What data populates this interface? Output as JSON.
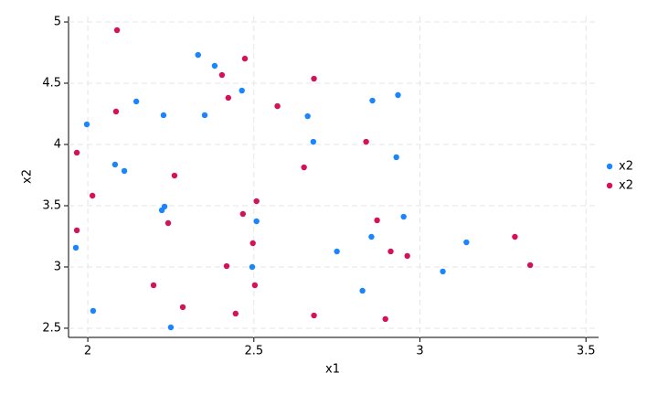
{
  "chart_data": {
    "type": "scatter",
    "xlabel": "x1",
    "ylabel": "x2",
    "xlim": [
      1.942,
      3.538
    ],
    "ylim": [
      2.425,
      5.045
    ],
    "xticks": [
      2,
      2.5,
      3,
      3.5
    ],
    "yticks": [
      2.5,
      3,
      3.5,
      4,
      4.5,
      5
    ],
    "grid": true,
    "legend": "right",
    "series": [
      {
        "name": "x2",
        "color": "#1a85ff",
        "x": [
          2.332,
          2.382,
          2.464,
          2.146,
          2.352,
          2.228,
          1.997,
          2.857,
          2.934,
          2.662,
          2.679,
          2.929,
          2.082,
          2.11,
          2.231,
          2.223,
          2.508,
          2.951,
          2.854,
          2.75,
          3.14,
          1.964,
          2.495,
          3.069,
          2.827,
          2.016,
          2.25
        ],
        "values": [
          4.731,
          4.642,
          4.44,
          4.351,
          4.239,
          4.239,
          4.164,
          4.358,
          4.403,
          4.231,
          4.022,
          3.896,
          3.836,
          3.784,
          3.493,
          3.463,
          3.373,
          3.41,
          3.246,
          3.127,
          3.201,
          3.157,
          3.0,
          2.963,
          2.806,
          2.642,
          2.507
        ]
      },
      {
        "name": "x2",
        "color": "#d41159",
        "x": [
          2.088,
          2.473,
          2.681,
          2.404,
          2.423,
          2.571,
          2.085,
          2.838,
          1.967,
          2.651,
          2.261,
          2.014,
          2.508,
          2.467,
          2.242,
          2.871,
          1.967,
          2.497,
          2.912,
          2.962,
          3.286,
          3.332,
          2.418,
          2.198,
          2.503,
          2.286,
          2.445,
          2.681,
          2.896
        ],
        "values": [
          4.933,
          4.701,
          4.537,
          4.567,
          4.381,
          4.313,
          4.269,
          4.022,
          3.933,
          3.813,
          3.746,
          3.582,
          3.537,
          3.433,
          3.358,
          3.381,
          3.299,
          3.194,
          3.127,
          3.09,
          3.246,
          3.015,
          3.007,
          2.851,
          2.851,
          2.672,
          2.619,
          2.604,
          2.575
        ]
      }
    ]
  }
}
